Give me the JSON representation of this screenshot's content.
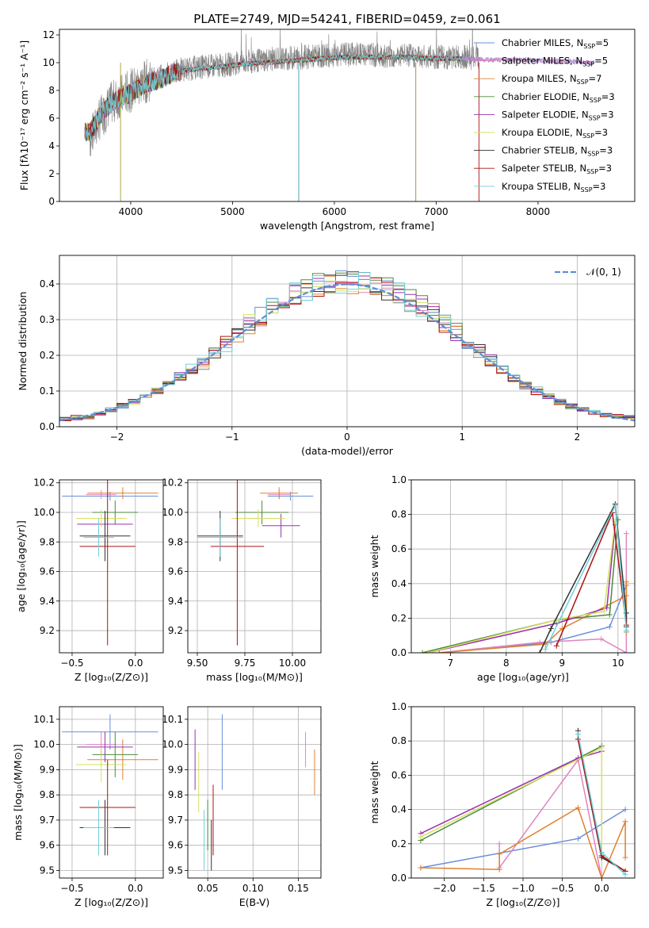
{
  "palette": [
    "#6a8fd8",
    "#e085c0",
    "#e08030",
    "#4b8a3b",
    "#9932b0",
    "#d6e060",
    "#333333",
    "#b01010",
    "#70d0d8"
  ],
  "chart_data": [
    {
      "id": "spectrum",
      "type": "line",
      "title": "PLATE=2749, MJD=54241, FIBERID=0459, z=0.061",
      "xlabel": "wavelength [Angstrom, rest frame]",
      "ylabel": "Flux [fλ10⁻¹⁷ erg cm⁻² s⁻¹ A⁻¹]",
      "xlim": [
        3300,
        8950
      ],
      "ylim": [
        0,
        12.4
      ],
      "xticks": [
        4000,
        5000,
        6000,
        7000,
        8000
      ],
      "yticks": [
        0,
        2,
        4,
        6,
        8,
        10,
        12
      ],
      "legend": "top-right",
      "data_color": "#808080",
      "data": {
        "x": [
          3600,
          3700,
          3800,
          3900,
          4000,
          4100,
          4200,
          4300,
          4400,
          4500,
          4700,
          4900,
          5100,
          5300,
          5500,
          5700,
          5900,
          6100,
          6300,
          6500,
          6700,
          6900,
          7100,
          7300,
          7420
        ],
        "y": [
          4.5,
          6.0,
          7.0,
          7.6,
          8.0,
          8.5,
          8.8,
          9.0,
          9.3,
          9.5,
          9.7,
          9.8,
          10.0,
          10.2,
          10.3,
          10.4,
          10.5,
          10.6,
          10.6,
          10.5,
          10.5,
          10.4,
          10.4,
          10.4,
          10.3
        ]
      },
      "models": {
        "x": [
          3600,
          3700,
          3800,
          3900,
          4000,
          4100,
          4200,
          4300,
          4400,
          4500,
          4700,
          4900,
          5100,
          5300,
          5500,
          5700,
          5900,
          6100,
          6300,
          6500,
          6700,
          6900,
          7100,
          7300,
          7500,
          7700,
          7900,
          8100,
          8300,
          8500
        ],
        "y": [
          5.0,
          6.2,
          7.0,
          7.5,
          7.8,
          8.3,
          8.6,
          8.8,
          9.2,
          9.4,
          9.6,
          9.7,
          9.9,
          10.0,
          10.1,
          10.2,
          10.3,
          10.4,
          10.4,
          10.4,
          10.4,
          10.3,
          10.3,
          10.3,
          10.2,
          10.2,
          10.2,
          10.1,
          10.1,
          10.0
        ]
      },
      "model_ranges": [
        [
          3550,
          8550
        ],
        [
          3550,
          8550
        ],
        [
          3550,
          7250
        ],
        [
          3550,
          7250
        ],
        [
          3550,
          7250
        ],
        [
          3550,
          7250
        ],
        [
          3550,
          7250
        ],
        [
          3550,
          7250
        ],
        [
          3550,
          7250
        ]
      ],
      "series": [
        {
          "name": "Chabrier MILES, N$_{SSP}$=5",
          "label": "Chabrier MILES, N",
          "sub": "SSP",
          "val": "=5"
        },
        {
          "name": "Salpeter MILES, N$_{SSP}$=5",
          "label": "Salpeter MILES, N",
          "sub": "SSP",
          "val": "=5"
        },
        {
          "name": "Kroupa MILES, N$_{SSP}$=7",
          "label": "Kroupa MILES, N",
          "sub": "SSP",
          "val": "=7"
        },
        {
          "name": "Chabrier ELODIE, N$_{SSP}$=3",
          "label": "Chabrier ELODIE, N",
          "sub": "SSP",
          "val": "=3"
        },
        {
          "name": "Salpeter ELODIE, N$_{SSP}$=3",
          "label": "Salpeter ELODIE, N",
          "sub": "SSP",
          "val": "=3"
        },
        {
          "name": "Kroupa ELODIE, N$_{SSP}$=3",
          "label": "Kroupa ELODIE, N",
          "sub": "SSP",
          "val": "=3"
        },
        {
          "name": "Chabrier STELIB, N$_{SSP}$=3",
          "label": "Chabrier STELIB, N",
          "sub": "SSP",
          "val": "=3"
        },
        {
          "name": "Salpeter STELIB, N$_{SSP}$=3",
          "label": "Salpeter STELIB, N",
          "sub": "SSP",
          "val": "=3"
        },
        {
          "name": "Kroupa STELIB, N$_{SSP}$=3",
          "label": "Kroupa STELIB, N",
          "sub": "SSP",
          "val": "=3"
        }
      ]
    },
    {
      "id": "residual-histogram",
      "type": "line",
      "xlabel": "(data-model)/error",
      "ylabel": "Normed distribution",
      "xlim": [
        -2.5,
        2.5
      ],
      "ylim": [
        0,
        0.48
      ],
      "xticks": [
        -2,
        -1,
        0,
        1,
        2
      ],
      "xtick_labels": [
        "−2",
        "−1",
        "0",
        "1",
        "2"
      ],
      "yticks": [
        0.0,
        0.1,
        0.2,
        0.3,
        0.4
      ],
      "ytick_labels": [
        "0.0",
        "0.1",
        "0.2",
        "0.3",
        "0.4"
      ],
      "grid": true,
      "legend": "top-right",
      "reference": {
        "name": "N(0,1)",
        "label": "𝒩(0, 1)",
        "color": "#5b8fd6",
        "x": [
          -2.5,
          -2.0,
          -1.5,
          -1.0,
          -0.5,
          0,
          0.5,
          1.0,
          1.5,
          2.0,
          2.5
        ],
        "y": [
          0.018,
          0.054,
          0.13,
          0.242,
          0.352,
          0.399,
          0.352,
          0.242,
          0.13,
          0.054,
          0.018
        ]
      },
      "bin_edges": [
        -2.5,
        -2.4,
        -2.3,
        -2.2,
        -2.1,
        -2.0,
        -1.9,
        -1.8,
        -1.7,
        -1.6,
        -1.5,
        -1.4,
        -1.3,
        -1.2,
        -1.1,
        -1.0,
        -0.9,
        -0.8,
        -0.7,
        -0.6,
        -0.5,
        -0.4,
        -0.3,
        -0.2,
        -0.1,
        0,
        0.1,
        0.2,
        0.3,
        0.4,
        0.5,
        0.6,
        0.7,
        0.8,
        0.9,
        1.0,
        1.1,
        1.2,
        1.3,
        1.4,
        1.5,
        1.6,
        1.7,
        1.8,
        1.9,
        2.0,
        2.1,
        2.2,
        2.3,
        2.4,
        2.5
      ],
      "hist_base": [
        0.022,
        0.025,
        0.028,
        0.035,
        0.045,
        0.058,
        0.07,
        0.085,
        0.1,
        0.12,
        0.14,
        0.16,
        0.18,
        0.205,
        0.23,
        0.26,
        0.285,
        0.31,
        0.335,
        0.355,
        0.37,
        0.385,
        0.395,
        0.405,
        0.41,
        0.41,
        0.405,
        0.4,
        0.39,
        0.375,
        0.36,
        0.34,
        0.315,
        0.29,
        0.265,
        0.24,
        0.21,
        0.185,
        0.16,
        0.135,
        0.115,
        0.1,
        0.085,
        0.07,
        0.058,
        0.048,
        0.04,
        0.034,
        0.03,
        0.027
      ]
    },
    {
      "id": "age-vs-z",
      "type": "scatter",
      "xlabel": "Z [log₁₀(Z/Z⊙)]",
      "ylabel": "age  [log₁₀(age/yr)]",
      "xlim": [
        -0.6,
        0.22
      ],
      "ylim": [
        9.05,
        10.22
      ],
      "xticks": [
        -0.5,
        0.0
      ],
      "xtick_labels": [
        "−0.5",
        "0.0"
      ],
      "yticks": [
        9.2,
        9.4,
        9.6,
        9.8,
        10.0,
        10.2
      ],
      "ytick_labels": [
        "9.2",
        "9.4",
        "9.6",
        "9.8",
        "10.0",
        "10.2"
      ],
      "grid": true,
      "points": [
        {
          "x": -0.2,
          "xerr": 0.38,
          "y": 10.11,
          "yerr": 0.03
        },
        {
          "x": -0.27,
          "xerr": 0.12,
          "y": 10.12,
          "yerr": 0.03
        },
        {
          "x": -0.1,
          "xerr": 0.28,
          "y": 10.13,
          "yerr": 0.04
        },
        {
          "x": -0.16,
          "xerr": 0.18,
          "y": 10.0,
          "yerr": 0.08
        },
        {
          "x": -0.24,
          "xerr": 0.22,
          "y": 9.92,
          "yerr": 0.08
        },
        {
          "x": -0.27,
          "xerr": 0.2,
          "y": 9.96,
          "yerr": 0.06
        },
        {
          "x": -0.24,
          "xerr": 0.2,
          "y": 9.84,
          "yerr": 0.17
        },
        {
          "x": -0.22,
          "xerr": 0.22,
          "y": 9.77,
          "yerr": 0.67
        },
        {
          "x": -0.29,
          "xerr": 0.12,
          "y": 9.83,
          "yerr": 0.13
        }
      ]
    },
    {
      "id": "age-vs-mass",
      "type": "scatter",
      "xlabel": "mass [log₁₀(M/M⊙)]",
      "xlim": [
        9.45,
        10.15
      ],
      "ylim": [
        9.05,
        10.22
      ],
      "xticks": [
        9.5,
        9.75,
        10.0
      ],
      "xtick_labels": [
        "9.50",
        "9.75",
        "10.00"
      ],
      "yticks": [
        9.2,
        9.4,
        9.6,
        9.8,
        10.0,
        10.2
      ],
      "ytick_labels": [
        "9.2",
        "9.4",
        "9.6",
        "9.8",
        "10.0",
        "10.2"
      ],
      "grid": true,
      "points": [
        {
          "x": 9.99,
          "xerr": 0.12,
          "y": 10.11,
          "yerr": 0.03
        },
        {
          "x": 9.93,
          "xerr": 0.06,
          "y": 10.12,
          "yerr": 0.03
        },
        {
          "x": 9.93,
          "xerr": 0.1,
          "y": 10.13,
          "yerr": 0.04
        },
        {
          "x": 9.84,
          "xerr": 0.14,
          "y": 10.0,
          "yerr": 0.08
        },
        {
          "x": 9.94,
          "xerr": 0.1,
          "y": 9.91,
          "yerr": 0.08
        },
        {
          "x": 9.82,
          "xerr": 0.14,
          "y": 9.96,
          "yerr": 0.06
        },
        {
          "x": 9.62,
          "xerr": 0.12,
          "y": 9.84,
          "yerr": 0.17
        },
        {
          "x": 9.71,
          "xerr": 0.14,
          "y": 9.77,
          "yerr": 0.67
        },
        {
          "x": 9.62,
          "xerr": 0.12,
          "y": 9.83,
          "yerr": 0.13
        }
      ]
    },
    {
      "id": "massweight-vs-age",
      "type": "line",
      "xlabel": "age  [log₁₀(age/yr)]",
      "ylabel": "mass weight",
      "xlim": [
        6.3,
        10.3
      ],
      "ylim": [
        0,
        1.0
      ],
      "xticks": [
        7,
        8,
        9,
        10
      ],
      "yticks": [
        0.0,
        0.2,
        0.4,
        0.6,
        0.8,
        1.0
      ],
      "ytick_labels": [
        "0.0",
        "0.2",
        "0.4",
        "0.6",
        "0.8",
        "1.0"
      ],
      "grid": true,
      "lines": [
        {
          "x": [
            6.8,
            8.8,
            9.85,
            10.15
          ],
          "y": [
            0.0,
            0.06,
            0.15,
            0.39
          ]
        },
        {
          "x": [
            6.8,
            8.6,
            9.7,
            10.15,
            10.15
          ],
          "y": [
            0.0,
            0.06,
            0.08,
            0.0,
            0.69
          ]
        },
        {
          "x": [
            6.8,
            8.7,
            9.0,
            10.15,
            10.15,
            10.15
          ],
          "y": [
            0.0,
            0.05,
            0.14,
            0.33,
            0.41,
            0.12
          ]
        },
        {
          "x": [
            6.5,
            8.9,
            9.85,
            10.0
          ],
          "y": [
            0.0,
            0.19,
            0.22,
            0.77
          ]
        },
        {
          "x": [
            6.6,
            8.9,
            9.8,
            9.95
          ],
          "y": [
            0.0,
            0.17,
            0.26,
            0.74
          ]
        },
        {
          "x": [
            6.6,
            8.9,
            9.75,
            9.95
          ],
          "y": [
            0.0,
            0.19,
            0.24,
            0.76
          ]
        },
        {
          "x": [
            8.6,
            8.8,
            9.95,
            10.15,
            10.15
          ],
          "y": [
            0.0,
            0.14,
            0.86,
            0.23,
            0.15
          ]
        },
        {
          "x": [
            8.9,
            9.9,
            10.15
          ],
          "y": [
            0.04,
            0.81,
            0.16
          ]
        },
        {
          "x": [
            8.7,
            9.95,
            10.15
          ],
          "y": [
            0.02,
            0.85,
            0.13
          ]
        }
      ]
    },
    {
      "id": "mass-vs-z",
      "type": "scatter",
      "xlabel": "Z [log₁₀(Z/Z⊙)]",
      "ylabel": "mass [log₁₀(M/M⊙)]",
      "xlim": [
        -0.6,
        0.22
      ],
      "ylim": [
        9.47,
        10.15
      ],
      "xticks": [
        -0.5,
        0.0
      ],
      "xtick_labels": [
        "−0.5",
        "0.0"
      ],
      "yticks": [
        9.5,
        9.6,
        9.7,
        9.8,
        9.9,
        10.0,
        10.1
      ],
      "ytick_labels": [
        "9.5",
        "9.6",
        "9.7",
        "9.8",
        "9.9",
        "10.0",
        "10.1"
      ],
      "grid": true,
      "points": [
        {
          "x": -0.2,
          "xerr": 0.38,
          "y": 10.05,
          "yerr": 0.07
        },
        {
          "x": -0.27,
          "xerr": 0.12,
          "y": 10.0,
          "yerr": 0.05
        },
        {
          "x": -0.1,
          "xerr": 0.28,
          "y": 9.94,
          "yerr": 0.08
        },
        {
          "x": -0.16,
          "xerr": 0.18,
          "y": 9.96,
          "yerr": 0.09
        },
        {
          "x": -0.24,
          "xerr": 0.22,
          "y": 9.99,
          "yerr": 0.06
        },
        {
          "x": -0.27,
          "xerr": 0.2,
          "y": 9.92,
          "yerr": 0.07
        },
        {
          "x": -0.24,
          "xerr": 0.2,
          "y": 9.67,
          "yerr": 0.11
        },
        {
          "x": -0.22,
          "xerr": 0.22,
          "y": 9.75,
          "yerr": 0.19
        },
        {
          "x": -0.29,
          "xerr": 0.12,
          "y": 9.67,
          "yerr": 0.11
        }
      ]
    },
    {
      "id": "mass-vs-ebv",
      "type": "scatter",
      "xlabel": "E(B-V)",
      "xlim": [
        0.028,
        0.175
      ],
      "ylim": [
        9.47,
        10.15
      ],
      "xticks": [
        0.05,
        0.1,
        0.15
      ],
      "xtick_labels": [
        "0.05",
        "0.10",
        "0.15"
      ],
      "yticks": [
        9.5,
        9.6,
        9.7,
        9.8,
        9.9,
        10.0,
        10.1
      ],
      "ytick_labels": [
        "9.5",
        "9.6",
        "9.7",
        "9.8",
        "9.9",
        "10.0",
        "10.1"
      ],
      "grid": true,
      "points": [
        {
          "x": 0.066,
          "y": 9.97,
          "yerr": 0.15
        },
        {
          "x": 0.158,
          "y": 9.98,
          "yerr": 0.07
        },
        {
          "x": 0.168,
          "y": 9.89,
          "yerr": 0.09
        },
        {
          "x": 0.05,
          "y": 9.68,
          "yerr": 0.1
        },
        {
          "x": 0.036,
          "y": 9.94,
          "yerr": 0.12
        },
        {
          "x": 0.04,
          "y": 9.85,
          "yerr": 0.12
        },
        {
          "x": 0.054,
          "y": 9.6,
          "yerr": 0.1
        },
        {
          "x": 0.056,
          "y": 9.7,
          "yerr": 0.14
        },
        {
          "x": 0.046,
          "y": 9.62,
          "yerr": 0.12
        }
      ]
    },
    {
      "id": "massweight-vs-z",
      "type": "line",
      "xlabel": "Z [log₁₀(Z/Z⊙)]",
      "ylabel": "mass weight",
      "xlim": [
        -2.42,
        0.42
      ],
      "ylim": [
        0,
        1.0
      ],
      "xticks": [
        -2.0,
        -1.5,
        -1.0,
        -0.5,
        0.0
      ],
      "xtick_labels": [
        "−2.0",
        "−1.5",
        "−1.0",
        "−0.5",
        "0.0"
      ],
      "yticks": [
        0.0,
        0.2,
        0.4,
        0.6,
        0.8,
        1.0
      ],
      "ytick_labels": [
        "0.0",
        "0.2",
        "0.4",
        "0.6",
        "0.8",
        "1.0"
      ],
      "grid": true,
      "lines": [
        {
          "x": [
            -2.3,
            -0.3,
            0.3
          ],
          "y": [
            0.06,
            0.23,
            0.4
          ]
        },
        {
          "x": [
            -1.3,
            -1.3,
            -0.3,
            0.0
          ],
          "y": [
            0.2,
            0.06,
            0.69,
            0.0
          ]
        },
        {
          "x": [
            -2.3,
            -1.3,
            -1.3,
            -0.3,
            0.0,
            0.3,
            0.3
          ],
          "y": [
            0.06,
            0.05,
            0.14,
            0.41,
            0.0,
            0.33,
            0.12
          ]
        },
        {
          "x": [
            -2.3,
            0.0
          ],
          "y": [
            0.22,
            0.77
          ]
        },
        {
          "x": [
            -2.3,
            -0.3,
            0.0
          ],
          "y": [
            0.26,
            0.7,
            0.74
          ]
        },
        {
          "x": [
            -2.3,
            0.0,
            0.0
          ],
          "y": [
            0.24,
            0.76,
            0.13
          ]
        },
        {
          "x": [
            -0.3,
            -0.3,
            0.0,
            0.3
          ],
          "y": [
            0.86,
            0.81,
            0.12,
            0.04
          ]
        },
        {
          "x": [
            -0.3,
            0.0,
            0.3
          ],
          "y": [
            0.81,
            0.13,
            0.04
          ]
        },
        {
          "x": [
            -0.3,
            0.0,
            0.3
          ],
          "y": [
            0.84,
            0.15,
            0.02
          ]
        }
      ]
    }
  ]
}
